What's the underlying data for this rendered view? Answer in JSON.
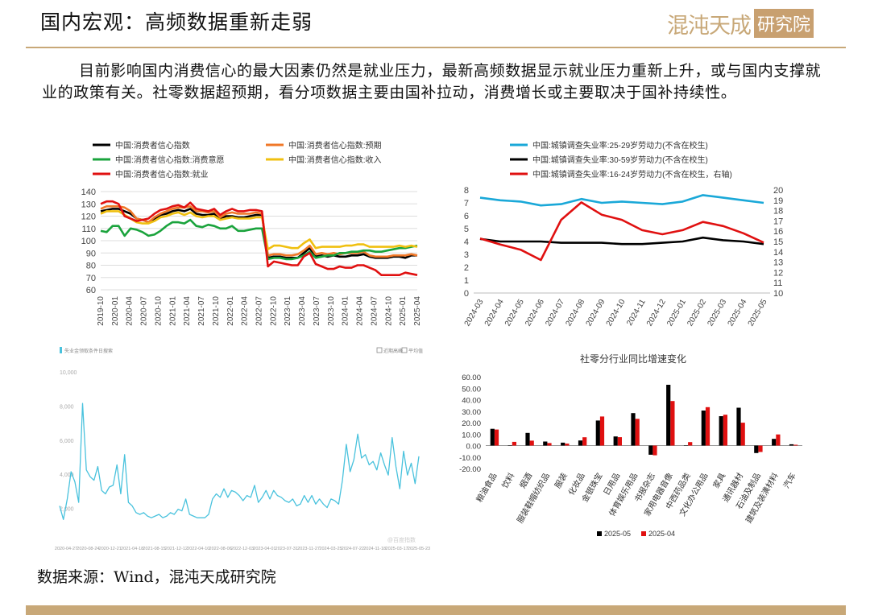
{
  "header": {
    "title": "国内宏观：高频数据重新走弱",
    "logo_text": "混沌天成",
    "logo_box": "研究院",
    "accent": "#c8a878"
  },
  "body_text": "目前影响国内消费信心的最大因素仍然是就业压力，最新高频数据显示就业压力重新上升，或与国内支撑就业的政策有关。社零数据超预期，看分项数据主要由国补拉动，消费增长或主要取决于国补持续性。",
  "source": "数据来源：Wind，混沌天成研究院",
  "chart_data": [
    {
      "type": "line",
      "legend": [
        "中国:消费者信心指数",
        "中国:消费者信心指数:预期",
        "中国:消费者信心指数:消费意愿",
        "中国:消费者信心指数:收入",
        "中国:消费者信心指数:就业"
      ],
      "colors": [
        "#000000",
        "#f07828",
        "#1aa33c",
        "#f0c010",
        "#e01010"
      ],
      "x_ticks": [
        "2019-10",
        "2020-01",
        "2020-04",
        "2020-07",
        "2020-10",
        "2021-01",
        "2021-04",
        "2021-07",
        "2021-10",
        "2022-01",
        "2022-04",
        "2022-07",
        "2022-10",
        "2023-01",
        "2023-04",
        "2023-07",
        "2023-10",
        "2024-01",
        "2024-04",
        "2024-07",
        "2024-10",
        "2025-01",
        "2025-04"
      ],
      "ylim": [
        60,
        140
      ],
      "y_ticks": [
        60,
        70,
        80,
        90,
        100,
        110,
        120,
        130,
        140
      ],
      "series": [
        {
          "name": "中国:消费者信心指数",
          "values": [
            124,
            125,
            126,
            126,
            124,
            122,
            118,
            117,
            115,
            118,
            121,
            122,
            124,
            125,
            124,
            126,
            122,
            121,
            121,
            122,
            118,
            120,
            120,
            119,
            119,
            120,
            121,
            121,
            86,
            87,
            87,
            86,
            86,
            86,
            90,
            94,
            87,
            88,
            87,
            88,
            87,
            87,
            88,
            88,
            89,
            87,
            86,
            86,
            86,
            87,
            87,
            86,
            88,
            88
          ]
        },
        {
          "name": "中国:消费者信心指数:预期",
          "values": [
            126,
            128,
            128,
            128,
            127,
            124,
            118,
            117,
            115,
            119,
            122,
            124,
            126,
            127,
            127,
            128,
            124,
            124,
            123,
            124,
            119,
            122,
            123,
            122,
            122,
            122,
            123,
            122,
            88,
            89,
            89,
            88,
            88,
            89,
            92,
            96,
            89,
            90,
            89,
            90,
            89,
            90,
            90,
            90,
            91,
            88,
            87,
            87,
            87,
            88,
            88,
            88,
            89,
            88
          ]
        },
        {
          "name": "中国:消费者信心指数:消费意愿",
          "values": [
            108,
            107,
            112,
            112,
            104,
            110,
            109,
            107,
            104,
            105,
            108,
            112,
            115,
            115,
            114,
            117,
            112,
            111,
            113,
            112,
            110,
            110,
            112,
            108,
            108,
            109,
            110,
            110,
            85,
            86,
            86,
            85,
            85,
            86,
            88,
            91,
            86,
            87,
            88,
            88,
            90,
            90,
            91,
            91,
            92,
            92,
            91,
            91,
            92,
            93,
            94,
            94,
            95,
            96
          ]
        },
        {
          "name": "中国:消费者信心指数:收入",
          "values": [
            122,
            124,
            124,
            124,
            121,
            118,
            115,
            114,
            114,
            116,
            119,
            120,
            122,
            123,
            121,
            123,
            120,
            119,
            120,
            120,
            117,
            118,
            119,
            118,
            118,
            118,
            119,
            119,
            93,
            96,
            96,
            95,
            94,
            94,
            98,
            101,
            94,
            95,
            95,
            95,
            95,
            96,
            96,
            97,
            97,
            95,
            95,
            95,
            95,
            95,
            96,
            95,
            96,
            95
          ]
        },
        {
          "name": "中国:消费者信心指数:就业",
          "values": [
            130,
            132,
            132,
            130,
            120,
            118,
            116,
            117,
            118,
            122,
            125,
            126,
            128,
            129,
            127,
            131,
            126,
            125,
            124,
            126,
            121,
            124,
            126,
            124,
            124,
            125,
            125,
            124,
            79,
            83,
            82,
            81,
            80,
            80,
            87,
            90,
            81,
            79,
            77,
            77,
            79,
            78,
            78,
            80,
            80,
            78,
            76,
            72,
            72,
            72,
            72,
            74,
            73,
            72
          ]
        }
      ]
    },
    {
      "type": "line",
      "legend": [
        "中国:城镇调查失业率:25-29岁劳动力(不含在校生)",
        "中国:城镇调查失业率:30-59岁劳动力(不含在校生)",
        "中国:城镇调查失业率:16-24岁劳动力(不含在校生，右轴)"
      ],
      "colors": [
        "#1aa8d8",
        "#000000",
        "#e01010"
      ],
      "x": [
        "2024-03",
        "2024-04",
        "2024-05",
        "2024-06",
        "2024-07",
        "2024-08",
        "2024-09",
        "2024-10",
        "2024-11",
        "2024-12",
        "2025-01",
        "2025-02",
        "2025-03",
        "2025-04",
        "2025-05"
      ],
      "ylim": [
        0,
        8
      ],
      "y2lim": [
        10,
        20
      ],
      "y_ticks": [
        0,
        1,
        2,
        3,
        4,
        5,
        6,
        7,
        8
      ],
      "y2_ticks": [
        10,
        11,
        12,
        13,
        14,
        15,
        16,
        17,
        18,
        19,
        20
      ],
      "series": [
        {
          "name": "中国:城镇调查失业率:25-29岁劳动力(不含在校生)",
          "values": [
            7.4,
            7.2,
            7.1,
            6.8,
            6.9,
            7.3,
            7.0,
            7.1,
            7.0,
            6.9,
            7.1,
            7.6,
            7.4,
            7.2,
            7.0
          ]
        },
        {
          "name": "中国:城镇调查失业率:30-59岁劳动力(不含在校生)",
          "values": [
            4.2,
            4.0,
            4.0,
            4.0,
            3.9,
            3.9,
            3.9,
            3.8,
            3.8,
            3.9,
            4.0,
            4.3,
            4.1,
            4.0,
            3.8
          ]
        },
        {
          "name": "中国:城镇调查失业率:16-24岁劳动力(不含在校生，右轴)",
          "axis": "right",
          "values": [
            15.3,
            14.7,
            14.2,
            13.2,
            17.1,
            18.8,
            17.6,
            17.1,
            16.1,
            15.7,
            16.1,
            16.9,
            16.5,
            15.8,
            14.9
          ]
        }
      ]
    },
    {
      "type": "line",
      "legend": [
        "失业金领取条件日搜索",
        "近期高峰",
        "平均值"
      ],
      "colors": [
        "#49c2dd"
      ],
      "x_ticks": [
        "2020-04-27",
        "2020-08-24",
        "2020-12-21",
        "2021-04-18",
        "2021-08-15",
        "2021-12-12",
        "2022-04-10",
        "2022-08-06",
        "2022-12-03",
        "2023-04-01",
        "2023-07-31",
        "2023-11-27",
        "2024-03-25",
        "2024-07-22",
        "2024-11-18",
        "2025-03-17",
        "2025-05-23"
      ],
      "ylim": [
        0,
        10000
      ],
      "y_ticks": [
        "10,000",
        "8,000",
        "6,000",
        "4,000",
        "2,000"
      ],
      "watermark": "@百度指数",
      "series": [
        {
          "name": "失业金领取条件日搜索",
          "values": [
            2200,
            1400,
            2600,
            4200,
            3600,
            2400,
            8200,
            4300,
            3900,
            3700,
            4500,
            3100,
            2900,
            3300,
            3400,
            4600,
            2900,
            5200,
            2400,
            2200,
            1800,
            1700,
            1800,
            1600,
            1500,
            1600,
            1700,
            1500,
            1600,
            1800,
            1700,
            2000,
            1900,
            2600,
            1700,
            1600,
            1500,
            1500,
            1500,
            1700,
            2600,
            2900,
            2700,
            3200,
            2700,
            3100,
            3000,
            2800,
            2500,
            2800,
            2700,
            3400,
            2400,
            2700,
            3100,
            2600,
            3100,
            2800,
            2700,
            2500,
            2400,
            2600,
            2200,
            2300,
            2800,
            2400,
            2800,
            2300,
            2600,
            2300,
            2100,
            2600,
            2500,
            2300,
            3700,
            5800,
            4200,
            4900,
            6400,
            5000,
            5200,
            4600,
            4800,
            4300,
            5300,
            4600,
            4000,
            6200,
            4500,
            3200,
            5400,
            4000,
            4700,
            3500,
            5100
          ]
        }
      ]
    },
    {
      "type": "bar",
      "title": "社零分行业同比增速变化",
      "categories": [
        "粮油食品",
        "饮料",
        "烟酒",
        "服装鞋帽纺织品",
        "服装",
        "化妆品",
        "金银珠宝",
        "日用品",
        "体育娱乐用品",
        "书报杂志",
        "家用电器音像",
        "中西药品类",
        "文化办公用品",
        "家具",
        "通讯器材",
        "石油及制品",
        "建筑及装潢材料",
        "汽车"
      ],
      "ylim": [
        -20,
        60
      ],
      "y_ticks": [
        "60.00",
        "50.00",
        "40.00",
        "30.00",
        "20.00",
        "10.00",
        "0.00",
        "-10.00",
        "-20.00"
      ],
      "series": [
        {
          "name": "2025-05",
          "color": "#000000",
          "values": [
            14.6,
            0.0,
            11.0,
            3.5,
            2.5,
            4.4,
            21.8,
            7.9,
            28.3,
            -8.0,
            53.0,
            0.0,
            30.5,
            25.6,
            33.0,
            -6.5,
            5.8,
            1.1
          ]
        },
        {
          "name": "2025-04",
          "color": "#e01010",
          "values": [
            14.0,
            3.2,
            4.3,
            2.2,
            1.7,
            7.2,
            25.3,
            7.3,
            23.3,
            -8.5,
            38.8,
            3.0,
            33.5,
            26.9,
            19.9,
            -5.6,
            9.7,
            0.7
          ]
        }
      ]
    }
  ]
}
